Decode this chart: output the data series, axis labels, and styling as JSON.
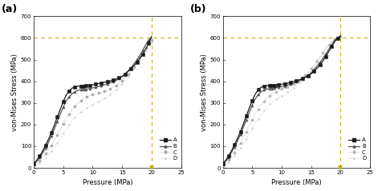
{
  "title_a": "(a)",
  "title_b": "(b)",
  "xlabel": "Pressure (MPa)",
  "ylabel": "von-Mises Stress (MPa)",
  "xlim": [
    0,
    25
  ],
  "ylim": [
    0,
    700
  ],
  "xticks": [
    0,
    5,
    10,
    15,
    20,
    25
  ],
  "yticks": [
    0,
    100,
    200,
    300,
    400,
    500,
    600,
    700
  ],
  "hline_y": 600,
  "vline_x": 20,
  "dashed_line_color": "#c8aa00",
  "legend_labels": [
    "A",
    "B",
    "C",
    "D"
  ],
  "curve_colors_a": [
    "#1a1a1a",
    "#555555",
    "#aaaaaa",
    "#d0d0d0"
  ],
  "curve_colors_b": [
    "#1a1a1a",
    "#555555",
    "#b0b8c0",
    "#d0d0d0"
  ],
  "markers": [
    "s",
    "^",
    "o",
    "."
  ],
  "linestyles": [
    "-",
    "-",
    ":",
    ":"
  ],
  "markersize": [
    2.2,
    2.2,
    2.2,
    2.5
  ],
  "linewidth": [
    0.9,
    0.9,
    0.7,
    0.7
  ],
  "figsize": [
    4.71,
    2.39
  ],
  "dpi": 100,
  "panel_a_data": {
    "A_x": [
      0,
      0.5,
      1,
      1.5,
      2,
      2.5,
      3,
      3.5,
      4,
      4.5,
      5,
      5.5,
      6,
      6.5,
      7,
      7.5,
      8,
      8.2,
      8.4,
      8.6,
      8.8,
      9,
      9.5,
      10,
      10.5,
      11,
      11.5,
      12,
      12.5,
      13,
      13.5,
      14,
      14.5,
      15,
      15.5,
      16,
      16.5,
      17,
      17.5,
      18,
      18.5,
      19,
      19.5,
      20
    ],
    "A_y": [
      20,
      35,
      55,
      78,
      105,
      132,
      163,
      198,
      235,
      270,
      305,
      336,
      355,
      368,
      374,
      377,
      378,
      378,
      378,
      379,
      379,
      380,
      382,
      384,
      386,
      389,
      392,
      395,
      398,
      401,
      405,
      410,
      416,
      422,
      432,
      445,
      458,
      472,
      487,
      505,
      525,
      548,
      575,
      605
    ],
    "B_x": [
      0,
      0.5,
      1,
      1.5,
      2,
      2.5,
      3,
      3.5,
      4,
      4.5,
      5,
      5.5,
      6,
      6.5,
      7,
      7.5,
      8,
      8.2,
      8.4,
      8.6,
      8.8,
      9,
      9.5,
      10,
      10.5,
      11,
      11.5,
      12,
      12.5,
      13,
      13.5,
      14,
      14.5,
      15,
      15.5,
      16,
      16.5,
      17,
      17.5,
      18,
      18.5,
      19,
      19.5,
      20
    ],
    "B_y": [
      20,
      30,
      48,
      68,
      92,
      118,
      148,
      180,
      215,
      248,
      280,
      308,
      328,
      342,
      352,
      358,
      360,
      361,
      362,
      362,
      363,
      364,
      366,
      369,
      372,
      375,
      379,
      383,
      388,
      393,
      398,
      404,
      412,
      422,
      433,
      448,
      462,
      480,
      498,
      520,
      543,
      568,
      590,
      605
    ],
    "C_x": [
      0,
      0.5,
      1,
      1.5,
      2,
      2.5,
      3,
      3.5,
      4,
      4.5,
      5,
      5.5,
      6,
      6.5,
      7,
      7.5,
      8,
      8.5,
      9,
      9.5,
      10,
      10.5,
      11,
      11.5,
      12,
      12.5,
      13,
      13.5,
      14,
      14.5,
      15,
      15.5,
      16,
      16.5,
      17,
      17.5,
      18,
      18.5,
      19,
      19.5,
      20
    ],
    "C_y": [
      10,
      20,
      32,
      48,
      65,
      83,
      104,
      127,
      152,
      177,
      202,
      226,
      248,
      268,
      285,
      298,
      310,
      320,
      328,
      334,
      338,
      342,
      346,
      350,
      355,
      360,
      365,
      372,
      380,
      390,
      402,
      415,
      430,
      448,
      468,
      490,
      512,
      535,
      555,
      575,
      590
    ],
    "D_x": [
      0,
      0.5,
      1,
      1.5,
      2,
      2.5,
      3,
      3.5,
      4,
      4.5,
      5,
      5.5,
      6,
      6.5,
      7,
      7.5,
      8,
      8.5,
      9,
      9.5,
      10,
      10.5,
      11,
      11.5,
      12,
      12.5,
      13,
      13.5,
      14,
      14.5,
      15,
      15.5,
      16,
      16.5,
      17,
      17.5,
      18,
      18.5,
      19,
      19.5,
      20
    ],
    "D_y": [
      5,
      12,
      22,
      34,
      47,
      62,
      78,
      96,
      116,
      137,
      158,
      180,
      200,
      218,
      234,
      248,
      260,
      270,
      278,
      286,
      292,
      298,
      305,
      312,
      320,
      328,
      338,
      348,
      360,
      373,
      388,
      403,
      420,
      438,
      458,
      478,
      498,
      518,
      538,
      558,
      578
    ]
  },
  "panel_b_data": {
    "A_x": [
      0,
      0.5,
      1,
      1.5,
      2,
      2.5,
      3,
      3.5,
      4,
      4.5,
      5,
      5.5,
      6,
      6.5,
      7,
      7.5,
      8,
      8.2,
      8.4,
      8.6,
      8.8,
      9,
      9.5,
      10,
      10.5,
      11,
      11.5,
      12,
      12.5,
      13,
      13.5,
      14,
      14.5,
      15,
      15.5,
      16,
      16.5,
      17,
      17.5,
      18,
      18.5,
      19,
      19.5,
      20
    ],
    "A_y": [
      20,
      35,
      56,
      80,
      108,
      136,
      168,
      203,
      240,
      276,
      310,
      340,
      360,
      372,
      377,
      379,
      380,
      380,
      380,
      381,
      381,
      382,
      384,
      386,
      388,
      391,
      395,
      399,
      403,
      407,
      412,
      418,
      425,
      434,
      445,
      460,
      476,
      494,
      514,
      537,
      560,
      582,
      598,
      610
    ],
    "B_x": [
      0,
      0.5,
      1,
      1.5,
      2,
      2.5,
      3,
      3.5,
      4,
      4.5,
      5,
      5.5,
      6,
      6.5,
      7,
      7.5,
      8,
      8.2,
      8.4,
      8.6,
      8.8,
      9,
      9.5,
      10,
      10.5,
      11,
      11.5,
      12,
      12.5,
      13,
      13.5,
      14,
      14.5,
      15,
      15.5,
      16,
      16.5,
      17,
      17.5,
      18,
      18.5,
      19,
      19.5,
      20
    ],
    "B_y": [
      20,
      31,
      50,
      72,
      97,
      124,
      154,
      187,
      222,
      256,
      289,
      318,
      338,
      351,
      360,
      364,
      366,
      367,
      367,
      368,
      368,
      370,
      372,
      375,
      378,
      382,
      386,
      391,
      397,
      403,
      410,
      418,
      428,
      440,
      454,
      470,
      487,
      506,
      526,
      548,
      570,
      590,
      602,
      607
    ],
    "C_x": [
      0,
      0.5,
      1,
      1.5,
      2,
      2.5,
      3,
      3.5,
      4,
      4.5,
      5,
      5.5,
      6,
      6.5,
      7,
      7.5,
      8,
      8.5,
      9,
      9.5,
      10,
      10.5,
      11,
      11.5,
      12,
      12.5,
      13,
      13.5,
      14,
      14.5,
      15,
      15.5,
      16,
      16.5,
      17,
      17.5,
      18,
      18.5,
      19,
      19.5,
      20
    ],
    "C_y": [
      10,
      22,
      36,
      53,
      72,
      93,
      116,
      141,
      168,
      195,
      222,
      248,
      270,
      290,
      308,
      322,
      334,
      344,
      352,
      358,
      364,
      369,
      374,
      380,
      387,
      395,
      404,
      415,
      427,
      441,
      456,
      472,
      490,
      510,
      530,
      550,
      568,
      583,
      594,
      600,
      605
    ],
    "D_x": [
      0,
      0.5,
      1,
      1.5,
      2,
      2.5,
      3,
      3.5,
      4,
      4.5,
      5,
      5.5,
      6,
      6.5,
      7,
      7.5,
      8,
      8.5,
      9,
      9.5,
      10,
      10.5,
      11,
      11.5,
      12,
      12.5,
      13,
      13.5,
      14,
      14.5,
      15,
      15.5,
      16,
      16.5,
      17,
      17.5,
      18,
      18.5,
      19,
      19.5,
      20
    ],
    "D_y": [
      5,
      14,
      25,
      39,
      55,
      72,
      91,
      112,
      135,
      158,
      182,
      205,
      227,
      247,
      265,
      280,
      294,
      306,
      316,
      325,
      333,
      341,
      350,
      359,
      370,
      382,
      395,
      410,
      425,
      442,
      460,
      478,
      497,
      515,
      534,
      552,
      568,
      582,
      593,
      600,
      605
    ]
  }
}
